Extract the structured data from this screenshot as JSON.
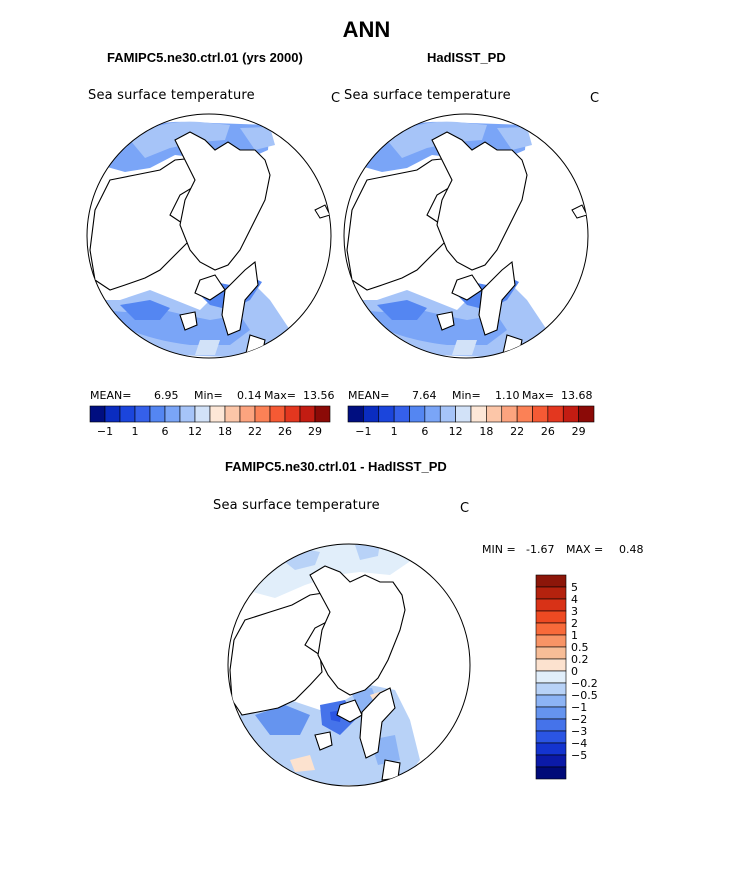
{
  "header": {
    "title": "ANN"
  },
  "panels": [
    {
      "case": "FAMIPC5.ne30.ctrl.01 (yrs 2000)",
      "variable": "Sea surface temperature",
      "units": "C",
      "stats": {
        "mean_label": "MEAN=",
        "mean": "6.95",
        "min_label": "Min=",
        "min": "0.14",
        "max_label": "Max=",
        "max": "13.56"
      }
    },
    {
      "case": "HadISST_PD",
      "variable": "Sea surface temperature",
      "units": "C",
      "stats": {
        "mean_label": "MEAN=",
        "mean": "7.64",
        "min_label": "Min=",
        "min": "1.10",
        "max_label": "Max=",
        "max": "13.68"
      }
    },
    {
      "case": "FAMIPC5.ne30.ctrl.01 - HadISST_PD",
      "variable": "Sea surface temperature",
      "units": "C",
      "stats": {
        "min_label": "MIN =",
        "min": "-1.67",
        "max_label": "MAX =",
        "max": "0.48"
      }
    }
  ],
  "colorbar_abs": {
    "colors": [
      "#000e80",
      "#0a2cc0",
      "#1b45dc",
      "#3560ea",
      "#5486f2",
      "#7aa5f7",
      "#a6c4f8",
      "#d2e2f8",
      "#fde7d7",
      "#fcc6a8",
      "#fca47f",
      "#fb8156",
      "#f55a34",
      "#e3371f",
      "#c31c12",
      "#8b0a07"
    ],
    "labels": [
      "-1",
      "1",
      "6",
      "12",
      "18",
      "22",
      "26",
      "29"
    ]
  },
  "colorbar_diff": {
    "colors_top_to_bottom": [
      "#8c1609",
      "#b4220e",
      "#d83217",
      "#ee4a22",
      "#f86a3a",
      "#f89466",
      "#f7bd97",
      "#fce2cf",
      "#e1eefa",
      "#b8d2f7",
      "#8db4f5",
      "#6594ef",
      "#4573ea",
      "#2b55e3",
      "#1434cf",
      "#0b1aa8",
      "#000a78"
    ],
    "labels": [
      "5",
      "4",
      "3",
      "2",
      "1",
      "0.5",
      "0.2",
      "0",
      "-0.2",
      "-0.5",
      "-1",
      "-2",
      "-3",
      "-4",
      "-5"
    ]
  },
  "chart_data": [
    {
      "type": "heatmap",
      "projection": "north polar stereographic",
      "title": "FAMIPC5.ne30.ctrl.01 (yrs 2000)",
      "variable": "Sea surface temperature",
      "units": "C",
      "mean": 6.95,
      "min": 0.14,
      "max": 13.56,
      "levels": [
        -1,
        1,
        6,
        12,
        18,
        22,
        26,
        29
      ]
    },
    {
      "type": "heatmap",
      "projection": "north polar stereographic",
      "title": "HadISST_PD",
      "variable": "Sea surface temperature",
      "units": "C",
      "mean": 7.64,
      "min": 1.1,
      "max": 13.68,
      "levels": [
        -1,
        1,
        6,
        12,
        18,
        22,
        26,
        29
      ]
    },
    {
      "type": "heatmap",
      "projection": "north polar stereographic",
      "title": "FAMIPC5.ne30.ctrl.01 - HadISST_PD",
      "variable": "Sea surface temperature",
      "units": "C",
      "min": -1.67,
      "max": 0.48,
      "levels": [
        -5,
        -4,
        -3,
        -2,
        -1,
        -0.5,
        -0.2,
        0,
        0.2,
        0.5,
        1,
        2,
        3,
        4,
        5
      ]
    }
  ]
}
